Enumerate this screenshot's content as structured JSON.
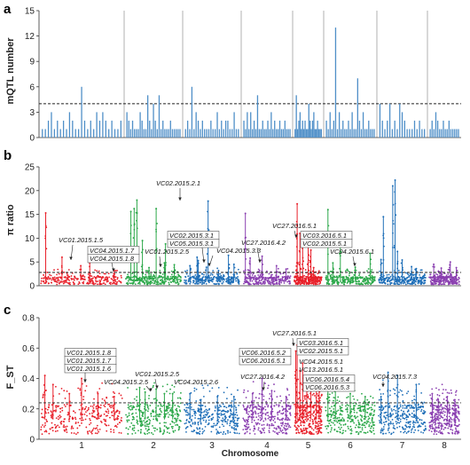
{
  "figure": {
    "panel_labels": [
      "a",
      "b",
      "c"
    ],
    "xlabel": "Chromosome"
  },
  "colors": {
    "a": "#4f8fc8",
    "chrom": [
      "#e8202a",
      "#2ca84a",
      "#1f6fb8",
      "#8a3fb0",
      "#e8202a",
      "#2ca84a",
      "#1f6fb8",
      "#8a3fb0"
    ]
  },
  "chart_data": [
    {
      "type": "bar",
      "panel": "a",
      "ylabel": "mQTL number",
      "ylim": [
        0,
        15
      ],
      "yticks": [
        0,
        3,
        6,
        9,
        12,
        15
      ],
      "threshold": 4,
      "grid": "vertical chromosome separators",
      "chromosomes": [
        "1",
        "2",
        "3",
        "4",
        "5",
        "6",
        "7",
        "8"
      ],
      "values": [
        [
          1,
          1,
          2,
          3,
          1,
          2,
          1,
          2,
          1,
          3,
          2,
          1,
          1,
          6,
          2,
          1,
          2,
          1,
          3,
          2,
          3,
          2,
          1,
          2,
          1,
          1,
          2
        ],
        [
          3,
          2,
          1,
          2,
          1,
          1,
          1,
          3,
          2,
          1,
          1,
          5,
          2,
          1,
          4,
          2,
          1,
          5,
          1,
          2,
          1,
          1,
          1,
          2,
          1,
          1,
          1,
          1,
          1
        ],
        [
          1,
          2,
          1,
          6,
          1,
          3,
          2,
          1,
          2,
          1,
          1,
          1,
          2,
          1,
          1,
          3,
          1,
          2,
          1,
          2,
          2,
          1,
          1,
          3,
          1,
          1
        ],
        [
          2,
          1,
          3,
          1,
          3,
          1,
          2,
          1,
          5,
          1,
          1,
          2,
          1,
          1,
          2,
          1,
          3,
          1,
          2,
          1,
          1,
          2,
          1,
          1,
          2,
          1,
          1,
          1
        ],
        [
          1,
          5,
          1,
          2,
          3,
          1,
          2,
          1,
          2,
          1,
          1,
          4,
          2,
          1,
          2,
          3,
          1,
          1,
          2,
          1,
          1,
          1
        ],
        [
          2,
          1,
          3,
          1,
          2,
          13,
          1,
          3,
          1,
          2,
          1,
          1,
          2,
          1,
          3,
          1,
          1,
          7,
          2,
          1,
          3,
          1,
          1,
          2,
          1,
          1,
          1
        ],
        [
          4,
          2,
          1,
          2,
          4,
          1,
          2,
          1,
          4,
          3,
          2,
          1,
          1,
          1,
          2,
          1,
          2,
          1,
          1
        ],
        [
          1,
          2,
          1,
          3,
          2,
          1,
          1,
          2,
          1,
          1,
          2,
          1,
          1,
          1,
          1,
          1
        ]
      ]
    },
    {
      "type": "scatter",
      "panel": "b",
      "ylabel": "π ratio",
      "ylim": [
        0,
        25
      ],
      "yticks": [
        0,
        5,
        10,
        15,
        20,
        25
      ],
      "threshold": 2.8,
      "background_mean": 1.1,
      "peaks": [
        [
          0.06,
          15.3
        ],
        [
          0.26,
          6
        ],
        [
          0.49,
          4.2
        ],
        [
          0.6,
          4.8
        ],
        [
          0.9,
          3.2
        ],
        [
          1.09,
          15.6
        ],
        [
          1.15,
          16.2
        ],
        [
          1.2,
          18
        ],
        [
          1.3,
          9.5
        ],
        [
          1.42,
          3.8
        ],
        [
          1.55,
          16.2
        ],
        [
          1.7,
          4.8
        ],
        [
          1.88,
          4.4
        ],
        [
          1.72,
          8.8
        ],
        [
          2.1,
          4.2
        ],
        [
          2.25,
          5.3
        ],
        [
          2.23,
          6
        ],
        [
          2.4,
          3.9
        ],
        [
          2.43,
          17.8
        ],
        [
          2.62,
          3.2
        ],
        [
          2.8,
          6.4
        ],
        [
          2.9,
          4.5
        ],
        [
          3.05,
          15.2
        ],
        [
          3.15,
          5.8
        ],
        [
          3.4,
          6.2
        ],
        [
          3.7,
          4.2
        ],
        [
          3.9,
          3.5
        ],
        [
          4.1,
          17.2
        ],
        [
          4.1,
          10.9
        ],
        [
          4.2,
          11
        ],
        [
          4.3,
          9
        ],
        [
          4.5,
          10.5
        ],
        [
          4.6,
          7.5
        ],
        [
          4.7,
          3.8
        ],
        [
          5.05,
          16
        ],
        [
          5.15,
          4.8
        ],
        [
          5.3,
          8.2
        ],
        [
          5.6,
          3.9
        ],
        [
          5.9,
          6.8
        ],
        [
          6.4,
          7.2
        ],
        [
          6.05,
          5.5
        ],
        [
          6.1,
          14.5
        ],
        [
          6.3,
          21
        ],
        [
          6.35,
          22.2
        ],
        [
          6.5,
          5.4
        ],
        [
          6.7,
          4
        ],
        [
          6.8,
          3.6
        ],
        [
          7.15,
          4.5
        ],
        [
          7.4,
          3.7
        ],
        [
          7.7,
          5
        ],
        [
          7.9,
          3.8
        ]
      ]
    },
    {
      "type": "scatter",
      "panel": "c",
      "ylabel": "F_ST",
      "ylim": [
        0,
        0.8
      ],
      "yticks": [
        0,
        0.2,
        0.4,
        0.6,
        0.8
      ],
      "threshold": 0.24,
      "background_mean": 0.13,
      "peaks": [
        [
          0.05,
          0.42
        ],
        [
          0.15,
          0.36
        ],
        [
          0.35,
          0.3
        ],
        [
          0.5,
          0.4
        ],
        [
          0.7,
          0.3
        ],
        [
          0.9,
          0.28
        ],
        [
          1.25,
          0.34
        ],
        [
          1.35,
          0.31
        ],
        [
          1.55,
          0.33
        ],
        [
          1.7,
          0.3
        ],
        [
          1.85,
          0.3
        ],
        [
          2.1,
          0.3
        ],
        [
          2.3,
          0.26
        ],
        [
          2.6,
          0.28
        ],
        [
          2.9,
          0.28
        ],
        [
          3.2,
          0.3
        ],
        [
          3.4,
          0.4
        ],
        [
          3.6,
          0.32
        ],
        [
          3.9,
          0.28
        ],
        [
          4.05,
          0.58
        ],
        [
          4.1,
          0.62
        ],
        [
          4.2,
          0.45
        ],
        [
          4.3,
          0.5
        ],
        [
          4.45,
          0.4
        ],
        [
          4.6,
          0.38
        ],
        [
          4.8,
          0.36
        ],
        [
          4.9,
          0.33
        ],
        [
          5.05,
          0.37
        ],
        [
          5.2,
          0.4
        ],
        [
          5.5,
          0.3
        ],
        [
          5.8,
          0.28
        ],
        [
          6.05,
          0.28
        ],
        [
          6.2,
          0.44
        ],
        [
          6.4,
          0.42
        ],
        [
          6.8,
          0.36
        ],
        [
          7.1,
          0.3
        ],
        [
          7.3,
          0.26
        ],
        [
          7.6,
          0.28
        ],
        [
          7.85,
          0.26
        ]
      ]
    }
  ],
  "annotations": {
    "b": [
      {
        "text": "VC01.2015.1.5",
        "boxed": false
      },
      {
        "text": "VC04.2015.1.7",
        "boxed": true
      },
      {
        "text": "VC04.2015.1.8",
        "boxed": true
      },
      {
        "text": "VC01.2015.2.5",
        "boxed": false
      },
      {
        "text": "VC02.2015.2.1",
        "boxed": false
      },
      {
        "text": "VC02.2015.3.1",
        "boxed": true
      },
      {
        "text": "VC05.2015.3.1",
        "boxed": true
      },
      {
        "text": "VC04.2015.3.3",
        "boxed": false
      },
      {
        "text": "VC27.2016.4.2",
        "boxed": false
      },
      {
        "text": "VC27.2016.5.1",
        "boxed": false
      },
      {
        "text": "VC03.2016.5.1",
        "boxed": true
      },
      {
        "text": "VC02.2015.5.1",
        "boxed": true
      },
      {
        "text": "VC04.2015.6.1",
        "boxed": false
      }
    ],
    "c": [
      {
        "text": "VC01.2015.1.8",
        "boxed": true
      },
      {
        "text": "VC01.2015.1.7",
        "boxed": true
      },
      {
        "text": "VC01.2015.1.6",
        "boxed": true
      },
      {
        "text": "VC01.2015.2.5",
        "boxed": false
      },
      {
        "text": "VC04.2015.2.5",
        "boxed": false
      },
      {
        "text": "VC04.2015.2.6",
        "boxed": false
      },
      {
        "text": "VC27.2016.5.1",
        "boxed": false
      },
      {
        "text": "VC06.2016.5.2",
        "boxed": true
      },
      {
        "text": "VC06.2016.5.1",
        "boxed": true
      },
      {
        "text": "VC03.2016.5.1",
        "boxed": true
      },
      {
        "text": "VC02.2015.5.1",
        "boxed": true
      },
      {
        "text": "VC04.2015.5.1",
        "boxed": false
      },
      {
        "text": "VC13.2016.5.1",
        "boxed": false
      },
      {
        "text": "VC06.2016.5.4",
        "boxed": true
      },
      {
        "text": "VC06.2016.5.3",
        "boxed": true
      },
      {
        "text": "VC27.2016.4.2",
        "boxed": false
      },
      {
        "text": "VC04.2015.7.3",
        "boxed": false
      }
    ]
  }
}
